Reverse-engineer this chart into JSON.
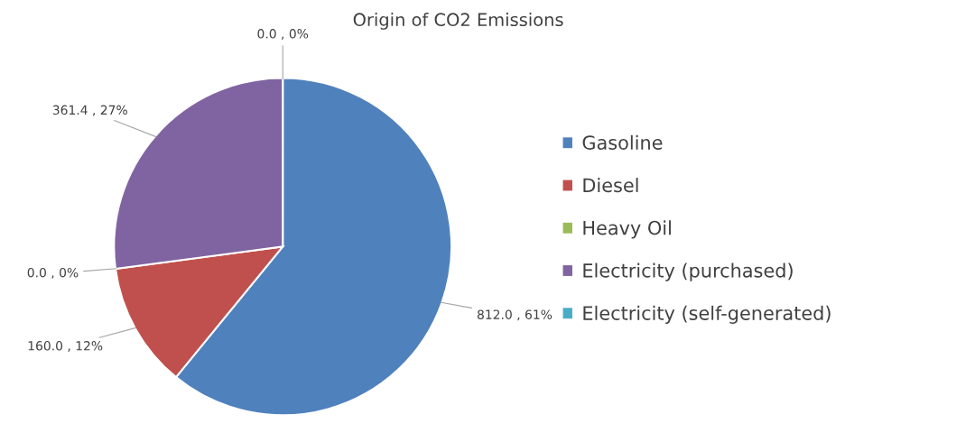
{
  "chart_data": {
    "type": "pie",
    "title": "Origin of CO2 Emissions",
    "categories": [
      "Gasoline",
      "Diesel",
      "Heavy Oil",
      "Electricity (purchased)",
      "Electricity (self-generated)"
    ],
    "values": [
      812.0,
      160.0,
      0.0,
      361.4,
      0.0
    ],
    "colors": [
      "#4f81bd",
      "#c0504d",
      "#9bbb59",
      "#8064a2",
      "#4bacc6"
    ],
    "value_labels": [
      "812.0 , 61%",
      "160.0 , 12%",
      "0.0 , 0%",
      "361.4 , 27%",
      "0.0 , 0%"
    ],
    "legend": "right"
  }
}
